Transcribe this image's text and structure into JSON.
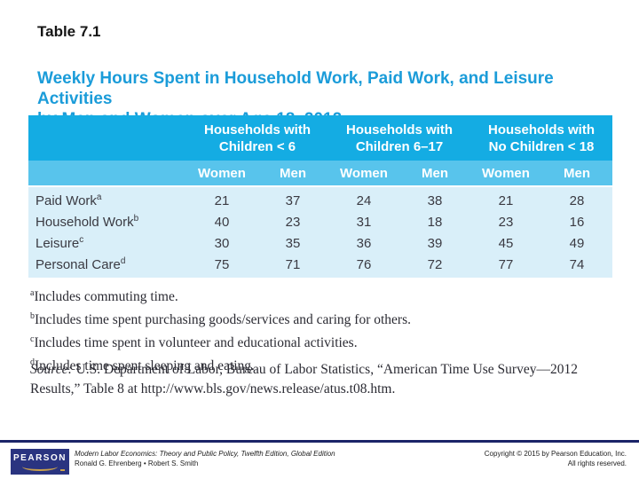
{
  "slide": {
    "label": "Table 7.1",
    "title_line1": "Weekly Hours Spent in Household Work, Paid Work, and Leisure Activities",
    "title_line2": "by Men and Women over Age 18, 2012"
  },
  "table": {
    "col_groups": [
      {
        "line1": "Households with",
        "line2": "Children < 6"
      },
      {
        "line1": "Households with",
        "line2": "Children 6–17"
      },
      {
        "line1": "Households with",
        "line2": "No Children < 18"
      }
    ],
    "sub_headers": [
      "Women",
      "Men",
      "Women",
      "Men",
      "Women",
      "Men"
    ],
    "rows": [
      {
        "label": "Paid Work",
        "sup": "a",
        "values": [
          21,
          37,
          24,
          38,
          21,
          28
        ]
      },
      {
        "label": "Household Work",
        "sup": "b",
        "values": [
          40,
          23,
          31,
          18,
          23,
          16
        ]
      },
      {
        "label": "Leisure",
        "sup": "c",
        "values": [
          30,
          35,
          36,
          39,
          45,
          49
        ]
      },
      {
        "label": "Personal Care",
        "sup": "d",
        "values": [
          75,
          71,
          76,
          72,
          77,
          74
        ]
      }
    ]
  },
  "footnotes": [
    {
      "sup": "a",
      "text": "Includes commuting time."
    },
    {
      "sup": "b",
      "text": "Includes time spent purchasing goods/services and caring for others."
    },
    {
      "sup": "c",
      "text": "Includes time spent in volunteer and educational activities."
    },
    {
      "sup": "d",
      "text": "Includes time spent sleeping and eating."
    }
  ],
  "source": {
    "label": "Source:",
    "text": " U.S. Department of Labor, Bureau of Labor Statistics, “American Time Use Survey—2012 Results,” Table 8 at http://www.bls.gov/news.release/atus.t08.htm."
  },
  "footer": {
    "logo_text": "PEARSON",
    "book_title": "Modern Labor Economics: Theory and Public Policy, Twelfth Edition, Global Edition",
    "authors": "Ronald G. Ehrenberg • Robert S. Smith",
    "copyright_line1": "Copyright © 2015 by Pearson Education, Inc.",
    "copyright_line2": "All rights reserved."
  },
  "colors": {
    "title_blue": "#1b9cd9",
    "header_band": "#14ace3",
    "subheader_band": "#58c4ec",
    "body_band": "#d9eff9",
    "footer_navy": "#1b2468",
    "pearson_navy": "#2a3480",
    "pearson_gold": "#c9a04c"
  }
}
